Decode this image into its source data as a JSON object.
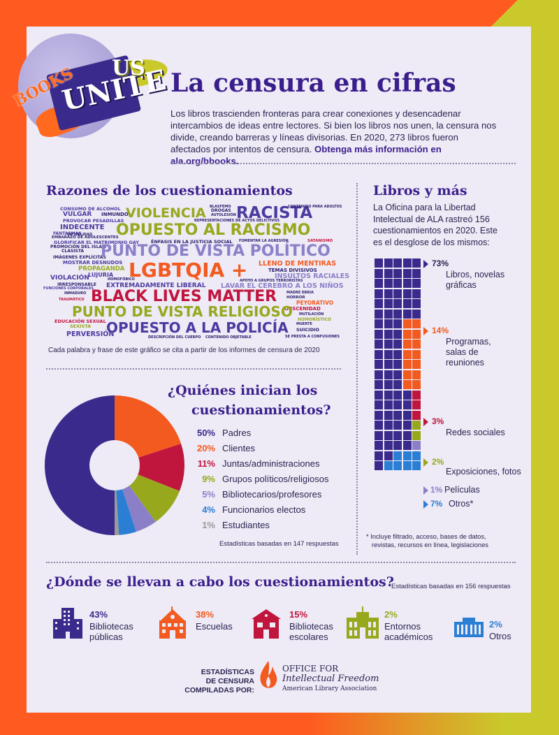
{
  "logo": {
    "books": "BOOKS",
    "unite": "UNITE",
    "us": "US"
  },
  "header": {
    "title": "La censura en cifras",
    "intro": "Los libros trascienden fronteras para crear conexiones y desencadenar intercambios de ideas entre lectores. Si bien los libros nos unen, la censura nos divide, creando barreras y líneas divisorias. En 2020, 273 libros fueron afectados por intentos de censura.",
    "intro_link": "Obtenga más información en ala.org/bbooks."
  },
  "reasons": {
    "title": "Razones de los cuestionamientos",
    "footnote": "Cada palabra y frase de este gráfico se cita a partir de los informes de censura de 2020",
    "words": [
      "CONSUMO DE ALCOHOL",
      "VULGAR",
      "INMUNDO",
      "PROVOCAR PESADILLAS",
      "VIOLENCIA",
      "BLASFEMO",
      "DROGAS",
      "AUTOLESIÓN",
      "REPRESENTACIONES DE ACTOS DELICTIVOS",
      "RACISTA",
      "CONTENIDO PARA ADULTOS",
      "INDECENTE",
      "FANTASMAS",
      "INFIDELIDAD",
      "EMBARAZO DE ADOLESCENTES",
      "GLORIFICAR EL MATRIMONIO GAY",
      "OPUESTO AL RACISMO",
      "ÉNFASIS EN LA JUSTICIA SOCIAL",
      "FOMENTAR LA AGRESIÓN",
      "SATANISMO",
      "PROMOCIÓN DEL ISLAM",
      "CLASISTA",
      "IMÁGENES EXPLÍCITAS",
      "MOSTRAR DESNUDOS",
      "PUNTO DE VISTA POLÍTICO",
      "PROPAGANDA",
      "LUJURIA",
      "VIOLACIÓN",
      "HOMOFÓBICO",
      "LGBTQIA +",
      "LLENO DE MENTIRAS",
      "TEMAS DIVISIVOS",
      "INSULTOS RACIALES",
      "IRRESPONSABLE",
      "FUNCIONES CORPORALES",
      "EXTREMADAMENTE LIBERAL",
      "APOYO A GRUPOS TERRORISTAS",
      "LAVAR EL CEREBRO A LOS NIÑOS",
      "INMADURO",
      "TRAUMÁTICO",
      "MADRE EBRIA",
      "HORROR",
      "PEYORATIVO",
      "BLACK LIVES MATTER",
      "OBSCENIDAD",
      "MUTILACIÓN",
      "PUNTO DE VISTA RELIGIOSO",
      "HUMORÍSTICO",
      "EDUCACIÓN SEXUAL",
      "SEXISTA",
      "MUERTE",
      "SUICIDIO",
      "OPUESTO A LA POLICÍA",
      "PERVERSIÓN",
      "DESCRIPCIÓN DEL CUERPO",
      "CONTENIDO OBJETABLE",
      "SE PRESTA A CONFUSIONES"
    ]
  },
  "who": {
    "title_line1": "¿Quiénes inician los",
    "title_line2": "cuestionamientos?",
    "note": "Estadísticas basadas en 147 respuestas"
  },
  "chart_data": {
    "type": "pie",
    "title": "¿Quiénes inician los cuestionamientos?",
    "categories": [
      "Padres",
      "Clientes",
      "Juntas/administraciones",
      "Grupos políticos/religiosos",
      "Bibliotecarios/profesores",
      "Funcionarios electos",
      "Estudiantes"
    ],
    "values": [
      50,
      20,
      11,
      9,
      5,
      4,
      1
    ],
    "labels": [
      "50%",
      "20%",
      "11%",
      "9%",
      "5%",
      "4%",
      "1%"
    ],
    "colors": [
      "#3a2a8c",
      "#f25a1f",
      "#c0153d",
      "#97a81d",
      "#8b80c8",
      "#2a7fd4",
      "#9a9a9a"
    ],
    "donut": true
  },
  "books": {
    "title": "Libros y más",
    "intro": "La Oficina para la Libertad Intelectual de ALA rastreó 156 cuestionamientos en 2020. Este es el desglose de los mismos:",
    "items": [
      {
        "pct": "73%",
        "label": "Libros, novelas gráficas",
        "value": 73,
        "color": "#3a2a8c"
      },
      {
        "pct": "14%",
        "label": "Programas, salas de reuniones",
        "value": 14,
        "color": "#f25a1f"
      },
      {
        "pct": "3%",
        "label": "Redes sociales",
        "value": 3,
        "color": "#c0153d"
      },
      {
        "pct": "2%",
        "label": "Exposiciones, fotos",
        "value": 2,
        "color": "#97a81d"
      },
      {
        "pct": "1%",
        "label": "Películas",
        "value": 1,
        "color": "#8b80c8"
      },
      {
        "pct": "7%",
        "label": "Otros*",
        "value": 7,
        "color": "#2a7fd4"
      }
    ],
    "footnote_line1": "* Incluye filtrado, acceso, bases de datos,",
    "footnote_line2": "revistas, recursos en línea, legislaciones"
  },
  "where": {
    "title": "¿Dónde se llevan a cabo los cuestionamientos?",
    "note": "Estadísticas basadas en 156 respuestas",
    "items": [
      {
        "pct": "43%",
        "label1": "Bibliotecas",
        "label2": "públicas",
        "icon": "skyscraper-icon",
        "color": "#3a2a8c"
      },
      {
        "pct": "38%",
        "label1": "Escuelas",
        "label2": "",
        "icon": "school-icon",
        "color": "#f25a1f"
      },
      {
        "pct": "15%",
        "label1": "Bibliotecas",
        "label2": "escolares",
        "icon": "school-library-icon",
        "color": "#c0153d"
      },
      {
        "pct": "2%",
        "label1": "Entornos",
        "label2": "académicos",
        "icon": "academic-building-icon",
        "color": "#97a81d"
      },
      {
        "pct": "2%",
        "label1": "Otros",
        "label2": "",
        "icon": "other-building-icon",
        "color": "#2a7fd4"
      }
    ]
  },
  "footer": {
    "stats_line1": "ESTADÍSTICAS",
    "stats_line2": "DE CENSURA",
    "stats_line3": "COMPILADAS POR:",
    "office_line1": "OFFICE FOR",
    "office_line2": "Intellectual Freedom",
    "office_line3": "American Library Association"
  }
}
